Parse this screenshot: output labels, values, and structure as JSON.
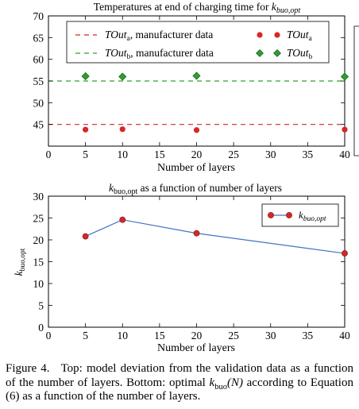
{
  "chart_data": [
    {
      "type": "scatter",
      "title": {
        "main": "Temperatures at end of charging time for ",
        "var": "k",
        "sub": "buo,opt"
      },
      "xlabel": "Number of layers",
      "ylabel": "",
      "xlim": [
        0,
        40
      ],
      "ylim": [
        40,
        70
      ],
      "x_ticks": [
        0,
        5,
        10,
        15,
        20,
        25,
        30,
        35,
        40
      ],
      "y_ticks": [
        45,
        50,
        55,
        60,
        65,
        70
      ],
      "grid": false,
      "legend_position": "top",
      "reference_lines": [
        {
          "name": "TOut",
          "sub": "a",
          "suffix": ", manufacturer data",
          "y": 45,
          "color": "#d62728",
          "style": "dashed"
        },
        {
          "name": "TOut",
          "sub": "b",
          "suffix": ", manufacturer data",
          "y": 55,
          "color": "#2ca02c",
          "style": "dashed"
        }
      ],
      "series": [
        {
          "name": "TOut",
          "sub": "a",
          "marker": "circle",
          "color": "#d62728",
          "x": [
            5,
            10,
            20,
            40
          ],
          "y": [
            43.8,
            43.9,
            43.7,
            43.8
          ]
        },
        {
          "name": "TOut",
          "sub": "b",
          "marker": "diamond",
          "color": "#2ca02c",
          "x": [
            5,
            10,
            20,
            40
          ],
          "y": [
            56.1,
            56.0,
            56.2,
            56.0
          ]
        }
      ]
    },
    {
      "type": "line",
      "title": {
        "var": "k",
        "sub": "buo,opt",
        "main": " as a function of number of layers"
      },
      "xlabel": "Number of layers",
      "ylabel": {
        "var": "k",
        "sub": "buo,opt"
      },
      "xlim": [
        0,
        40
      ],
      "ylim": [
        0,
        30
      ],
      "x_ticks": [
        0,
        5,
        10,
        15,
        20,
        25,
        30,
        35,
        40
      ],
      "y_ticks": [
        0,
        5,
        10,
        15,
        20,
        25,
        30
      ],
      "grid": false,
      "legend_position": "top-right",
      "series": [
        {
          "name": "k",
          "sub": "buo,opt",
          "line_color": "#4472c4",
          "marker_color": "#d62728",
          "x": [
            5,
            10,
            20,
            40
          ],
          "y": [
            20.8,
            24.6,
            21.5,
            16.9
          ]
        }
      ]
    }
  ],
  "caption": {
    "label": "Figure 4.",
    "text_1": "Top: model deviation from the validation data as a function of the number of layers. Bottom: optimal ",
    "k": "k",
    "k_sub": "buo",
    "n": "(N)",
    "text_2": " according to Equation (6) as a function of the number of layers."
  }
}
